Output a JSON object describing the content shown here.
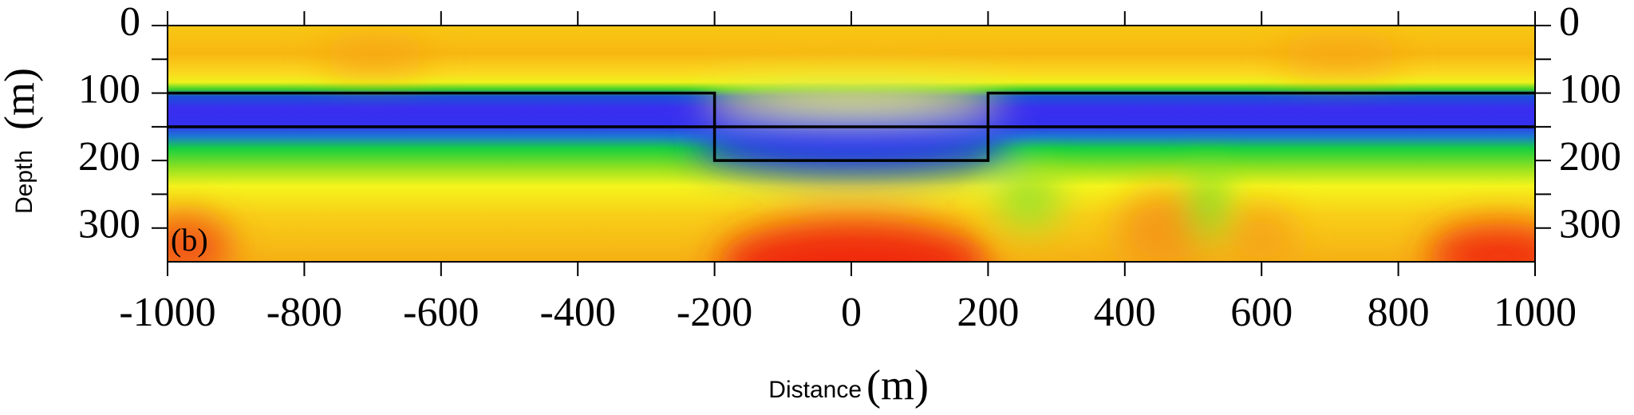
{
  "chart_data": {
    "type": "line",
    "xlabel": "Distance",
    "xunit": "(m)",
    "ylabel": "Depth",
    "yunit": "(m)",
    "annotation": "(b)",
    "xlim": [
      -1000,
      1000
    ],
    "xticks": [
      -1000,
      -800,
      -600,
      -400,
      -200,
      0,
      200,
      400,
      600,
      800,
      1000
    ],
    "ylim": [
      350,
      0
    ],
    "yticks": [
      0,
      100,
      200,
      300
    ],
    "yminorticks": [
      50,
      150,
      250
    ],
    "series": [
      {
        "color": "#000000",
        "x": [
          -1000,
          -200,
          -200,
          200,
          200,
          1000
        ],
        "values": [
          100,
          100,
          200,
          200,
          100,
          100
        ]
      },
      {
        "color": "#000000",
        "x": [
          -1000,
          1000
        ],
        "values": [
          150,
          150
        ]
      }
    ]
  }
}
